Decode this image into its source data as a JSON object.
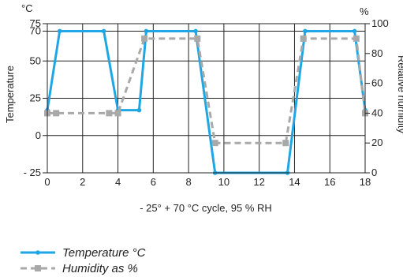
{
  "chart_data": {
    "type": "line",
    "caption": "- 25° + 70 °C cycle, 95 % RH",
    "x_axis": {
      "range": [
        0,
        18
      ],
      "ticks": [
        0,
        2,
        4,
        6,
        8,
        10,
        12,
        14,
        16,
        18
      ]
    },
    "left_axis": {
      "label": "Temperature",
      "unit": "°C",
      "range": [
        -25,
        75
      ],
      "ticks": [
        {
          "value": 75,
          "label": "75"
        },
        {
          "value": 70,
          "label": "70"
        },
        {
          "value": 50,
          "label": "50"
        },
        {
          "value": 25,
          "label": "25"
        },
        {
          "value": 0,
          "label": "0"
        },
        {
          "value": -25,
          "label": "- 25"
        }
      ]
    },
    "right_axis": {
      "label": "Relative humidity",
      "unit": "%",
      "range": [
        0,
        100
      ],
      "ticks": [
        0,
        20,
        40,
        60,
        80,
        100
      ]
    },
    "grid": true,
    "legend_position": "bottom-left",
    "series": [
      {
        "name": "Temperature °C",
        "axis": "left",
        "style": "solid",
        "marker": "dot",
        "color": "#1ea7e4",
        "points": [
          [
            0,
            17
          ],
          [
            0.7,
            70
          ],
          [
            3.2,
            70
          ],
          [
            4,
            17
          ],
          [
            5.2,
            17
          ],
          [
            5.6,
            70
          ],
          [
            8.4,
            70
          ],
          [
            9.5,
            -25
          ],
          [
            13.6,
            -25
          ],
          [
            14.6,
            70
          ],
          [
            17.4,
            70
          ],
          [
            18,
            17
          ]
        ]
      },
      {
        "name": "Humidity as %",
        "axis": "right",
        "style": "dashed",
        "marker": "square",
        "color": "#a9a9a9",
        "points": [
          [
            0,
            40
          ],
          [
            0.5,
            40
          ],
          [
            3.5,
            40
          ],
          [
            4,
            40
          ],
          [
            5.5,
            90
          ],
          [
            8.5,
            90
          ],
          [
            9.5,
            20
          ],
          [
            13.5,
            20
          ],
          [
            14.5,
            90
          ],
          [
            17.5,
            90
          ],
          [
            18,
            40
          ]
        ]
      }
    ]
  }
}
